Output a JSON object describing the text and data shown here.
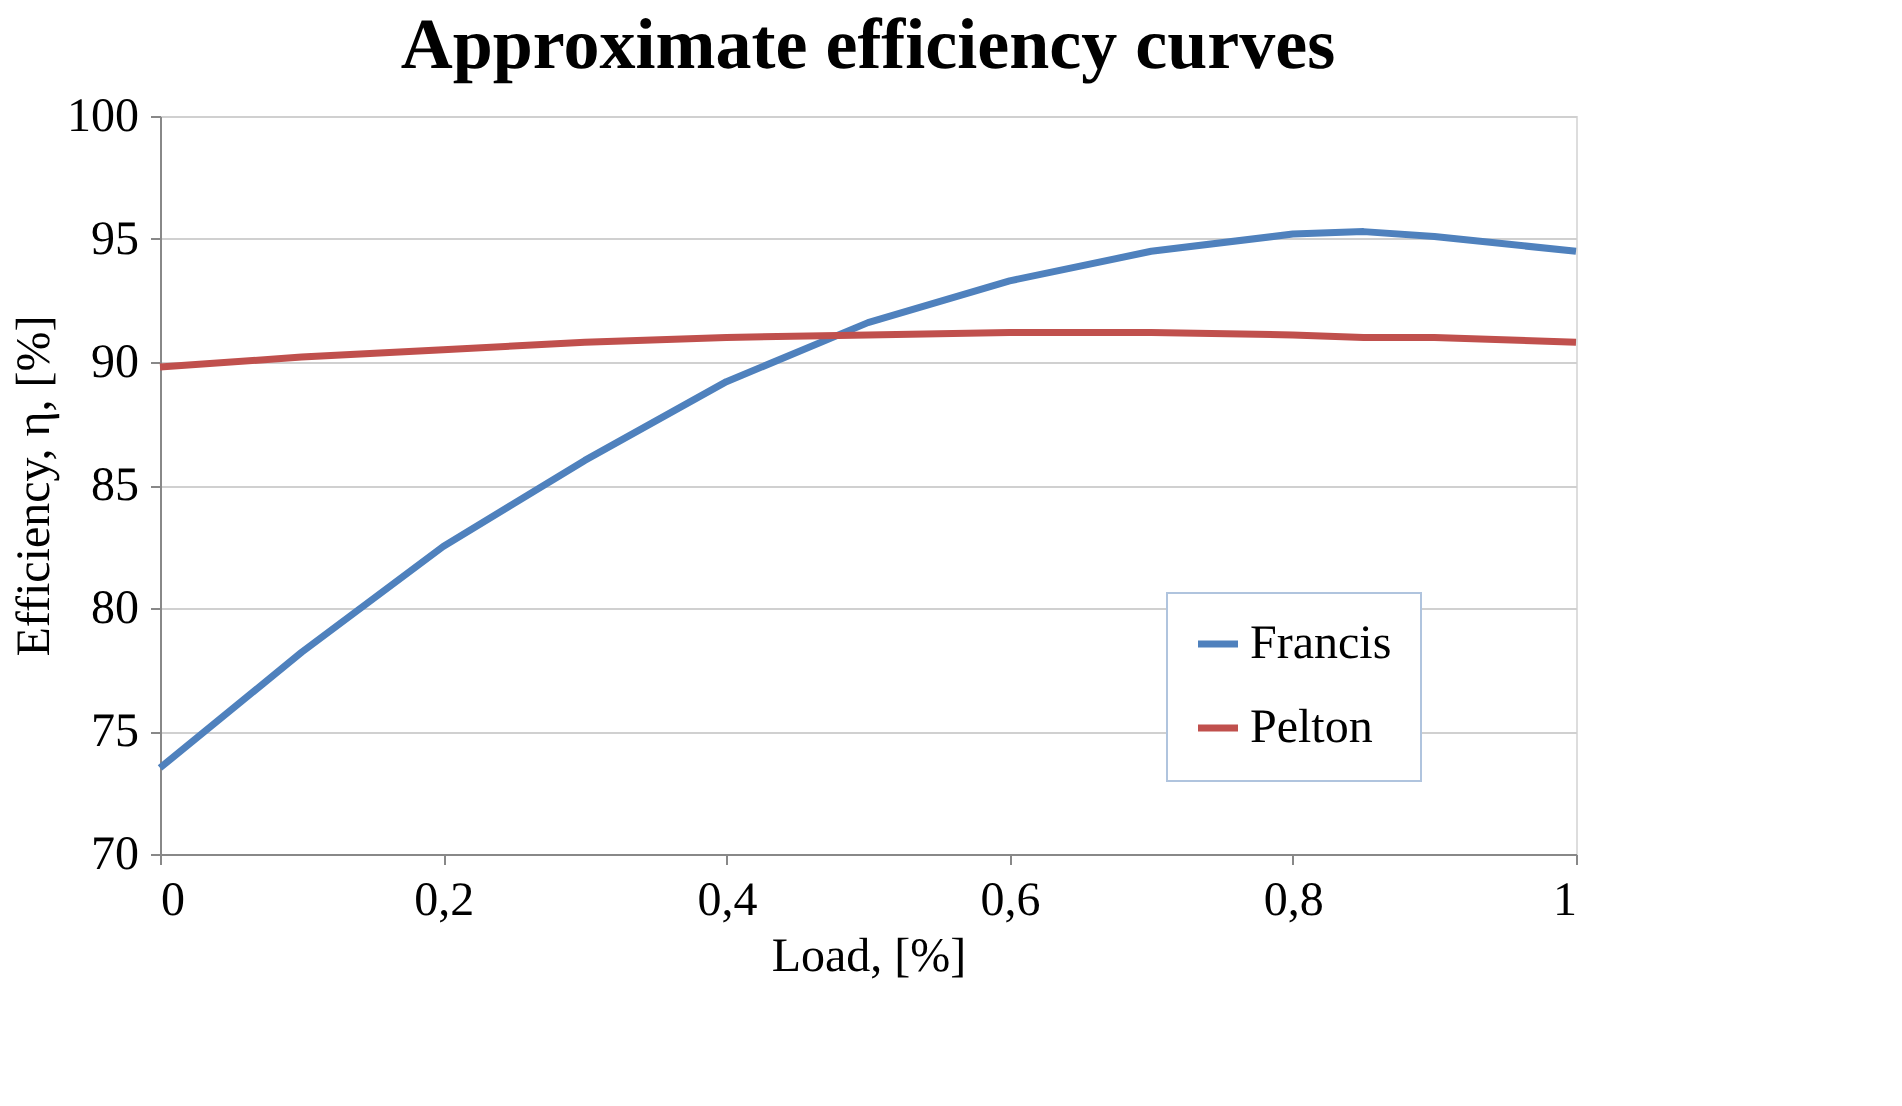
{
  "chart_data": {
    "type": "line",
    "title": "Approximate efficiency curves",
    "xlabel": "Load, [%]",
    "ylabel": "Efficiency, η, [%]",
    "x": [
      0,
      0.1,
      0.2,
      0.3,
      0.4,
      0.5,
      0.6,
      0.7,
      0.8,
      0.85,
      0.9,
      1
    ],
    "series": [
      {
        "name": "Francis",
        "color": "#4f81bd",
        "values": [
          73.5,
          78.2,
          82.5,
          86.0,
          89.2,
          91.6,
          93.3,
          94.5,
          95.2,
          95.3,
          95.1,
          94.5
        ]
      },
      {
        "name": "Pelton",
        "color": "#c0504d",
        "values": [
          89.8,
          90.2,
          90.5,
          90.8,
          91.0,
          91.1,
          91.2,
          91.2,
          91.1,
          91.0,
          91.0,
          90.8
        ]
      }
    ],
    "xlim": [
      0,
      1
    ],
    "ylim": [
      70,
      100
    ],
    "xticks": [
      0,
      {
        "value": 0.2,
        "label": "0,2"
      },
      {
        "value": 0.4,
        "label": "0,4"
      },
      {
        "value": 0.6,
        "label": "0,6"
      },
      {
        "value": 0.8,
        "label": "0,8"
      },
      1
    ],
    "yticks": [
      70,
      75,
      80,
      85,
      90,
      95,
      100
    ],
    "grid": "y",
    "legend": "bottom right",
    "marker": "none",
    "line_style": "solid"
  }
}
